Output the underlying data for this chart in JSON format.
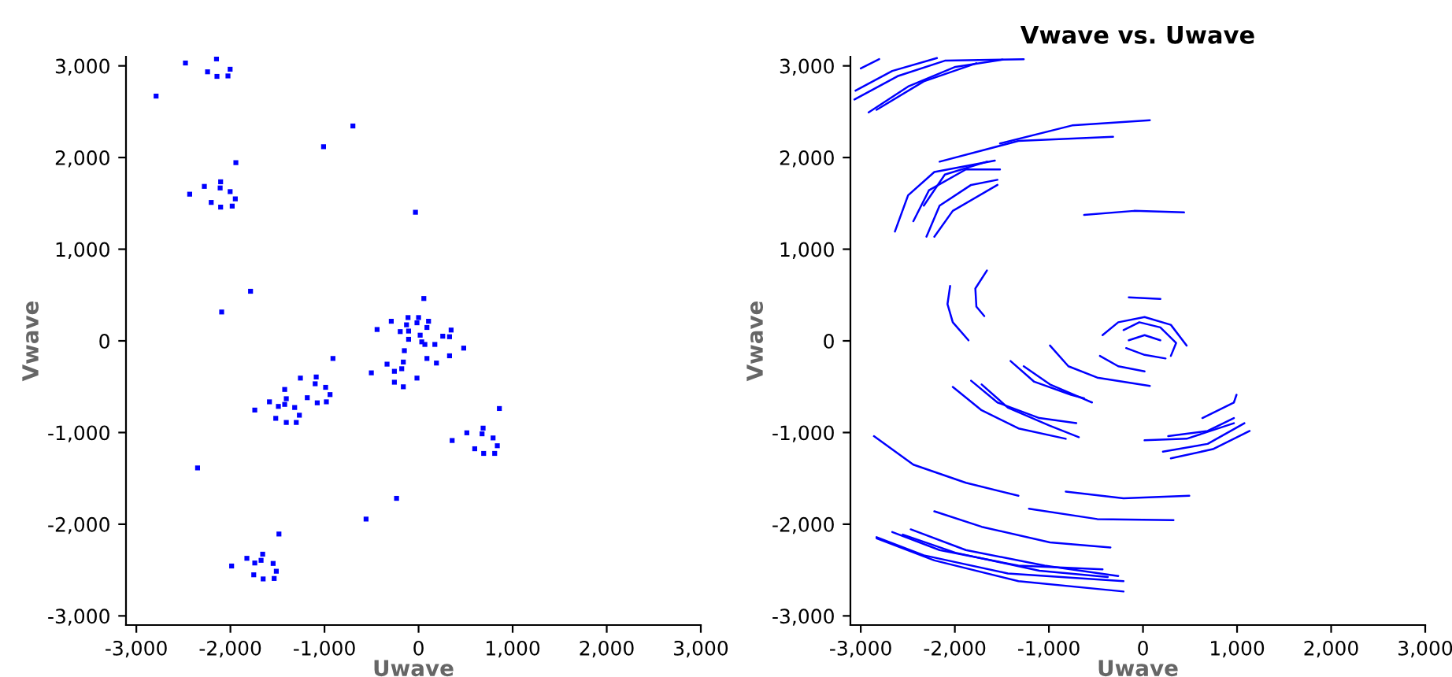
{
  "chart_data": [
    {
      "type": "scatter",
      "xlabel": "Uwave",
      "ylabel": "Vwave",
      "marker": "square",
      "grid": false,
      "xlim": [
        -3110,
        3000
      ],
      "ylim": [
        -3100,
        3100
      ],
      "xticks": [
        {
          "value": -3000,
          "label": "-3,000"
        },
        {
          "value": -2000,
          "label": "-2,000"
        },
        {
          "value": -1000,
          "label": "-1,000"
        },
        0,
        {
          "value": 1000,
          "label": "1,000"
        },
        {
          "value": 2000,
          "label": "2,000"
        },
        {
          "value": 3000,
          "label": "3,000"
        }
      ],
      "yticks": [
        {
          "value": -3000,
          "label": "-3,000"
        },
        {
          "value": -2000,
          "label": "-2,000"
        },
        {
          "value": -1000,
          "label": "-1,000"
        },
        0,
        {
          "value": 1000,
          "label": "1,000"
        },
        {
          "value": 2000,
          "label": "2,000"
        },
        {
          "value": 3000,
          "label": "3,000"
        }
      ],
      "series": [
        {
          "color": "#0000ff",
          "x": [
            -2478,
            -2148,
            -2243,
            -2003,
            -2143,
            -2026,
            -2790,
            -698,
            -1010,
            -1942,
            -2433,
            -2277,
            -2109,
            -2104,
            -2003,
            -1948,
            -2204,
            -2104,
            -1981,
            -33,
            -1786,
            -2093,
            56,
            -290,
            -112,
            0,
            106,
            -128,
            -17,
            89,
            -195,
            -106,
            17,
            -106,
            34,
            67,
            173,
            329,
            346,
            480,
            -441,
            -151,
            89,
            190,
            329,
            257,
            -179,
            -335,
            -502,
            -257,
            -17,
            -162,
            -257,
            -910,
            -162,
            -1256,
            -1088,
            -1099,
            -988,
            -1183,
            -1077,
            -980,
            -941,
            -1423,
            -1406,
            -1423,
            -1585,
            -1490,
            -1317,
            -1267,
            -1518,
            -1406,
            -1300,
            -1741,
            859,
            686,
            513,
            675,
            792,
            357,
            597,
            837,
            692,
            809,
            -2349,
            -234,
            -558,
            -1484,
            -1657,
            -1674,
            -1825,
            -1741,
            -1546,
            -1987,
            -1512,
            -1752,
            -1652,
            -1535
          ],
          "values": [
            3031,
            3076,
            2935,
            2963,
            2885,
            2890,
            2670,
            2344,
            2118,
            1944,
            1600,
            1685,
            1668,
            1735,
            1628,
            1549,
            1510,
            1459,
            1470,
            1403,
            541,
            315,
            462,
            214,
            254,
            254,
            214,
            175,
            197,
            146,
            101,
            107,
            62,
            17,
            -11,
            -39,
            -39,
            45,
            118,
            -79,
            124,
            -107,
            -192,
            -242,
            -163,
            51,
            -304,
            -254,
            -349,
            -332,
            -406,
            -501,
            -451,
            -192,
            -231,
            -406,
            -394,
            -468,
            -507,
            -620,
            -676,
            -665,
            -586,
            -530,
            -631,
            -693,
            -665,
            -715,
            -727,
            -811,
            -845,
            -890,
            -890,
            -755,
            -738,
            -952,
            -1003,
            -1014,
            -1059,
            -1087,
            -1177,
            -1144,
            -1228,
            -1228,
            -1386,
            -1718,
            -1944,
            -2107,
            -2327,
            -2394,
            -2372,
            -2423,
            -2428,
            -2456,
            -2513,
            -2552,
            -2597,
            -2592
          ]
        }
      ]
    },
    {
      "type": "line",
      "title": "Vwave vs. Uwave",
      "xlabel": "Uwave",
      "ylabel": "Vwave",
      "marker": "none",
      "line_style": "solid",
      "grid": false,
      "xlim": [
        -3110,
        3000
      ],
      "ylim": [
        -3100,
        3100
      ],
      "xticks": [
        {
          "value": -3000,
          "label": "-3,000"
        },
        {
          "value": -2000,
          "label": "-2,000"
        },
        {
          "value": -1000,
          "label": "-1,000"
        },
        0,
        {
          "value": 1000,
          "label": "1,000"
        },
        {
          "value": 2000,
          "label": "2,000"
        },
        {
          "value": 3000,
          "label": "3,000"
        }
      ],
      "yticks": [
        {
          "value": -3000,
          "label": "-3,000"
        },
        {
          "value": -2000,
          "label": "-2,000"
        },
        {
          "value": -1000,
          "label": "-1,000"
        },
        0,
        {
          "value": 1000,
          "label": "1,000"
        },
        {
          "value": 2000,
          "label": "2,000"
        },
        {
          "value": 3000,
          "label": "3,000"
        }
      ],
      "series": [
        {
          "color": "#0000ff",
          "x": [
            -3056,
            -2665,
            -2190
          ],
          "values": [
            2729,
            2944,
            3085
          ]
        },
        {
          "color": "#0000ff",
          "x": [
            -3067,
            -2609,
            -2106,
            -1268
          ],
          "values": [
            2633,
            2887,
            3056,
            3073
          ]
        },
        {
          "color": "#0000ff",
          "x": [
            -2916,
            -2497,
            -1994,
            -1492
          ],
          "values": [
            2492,
            2774,
            2989,
            3068
          ]
        },
        {
          "color": "#0000ff",
          "x": [
            -2832,
            -2330,
            -1771
          ],
          "values": [
            2520,
            2831,
            3028
          ]
        },
        {
          "color": "#0000ff",
          "x": [
            -3000,
            -2804
          ],
          "values": [
            2972,
            3073
          ]
        },
        {
          "color": "#0000ff",
          "x": [
            -2637,
            -2497,
            -2218,
            -1575
          ],
          "values": [
            1192,
            1588,
            1842,
            1966
          ]
        },
        {
          "color": "#0000ff",
          "x": [
            -2441,
            -2274,
            -1883,
            -1520
          ],
          "values": [
            1305,
            1644,
            1870,
            1870
          ]
        },
        {
          "color": "#0000ff",
          "x": [
            -2302,
            -2162,
            -1827,
            -1547
          ],
          "values": [
            1136,
            1475,
            1701,
            1757
          ]
        },
        {
          "color": "#0000ff",
          "x": [
            -2218,
            -2022,
            -1547
          ],
          "values": [
            1136,
            1418,
            1701
          ]
        },
        {
          "color": "#0000ff",
          "x": [
            -2330,
            -2106,
            -1659
          ],
          "values": [
            1475,
            1814,
            1955
          ]
        },
        {
          "color": "#0000ff",
          "x": [
            -1520,
            -754,
            73
          ],
          "values": [
            2153,
            2350,
            2407
          ]
        },
        {
          "color": "#0000ff",
          "x": [
            -2162,
            -1324,
            -318
          ],
          "values": [
            1955,
            2181,
            2226
          ]
        },
        {
          "color": "#0000ff",
          "x": [
            -626,
            -95,
            436
          ],
          "values": [
            1373,
            1418,
            1401
          ]
        },
        {
          "color": "#0000ff",
          "x": [
            -2050,
            -2078,
            -2022,
            -1855
          ],
          "values": [
            599,
            401,
            203,
            6
          ]
        },
        {
          "color": "#0000ff",
          "x": [
            -1659,
            -1782,
            -1771,
            -1687
          ],
          "values": [
            768,
            571,
            373,
            271
          ]
        },
        {
          "color": "#0000ff",
          "x": [
            -151,
            185
          ],
          "values": [
            475,
            458
          ]
        },
        {
          "color": "#0000ff",
          "x": [
            -430,
            -263,
            17,
            296,
            464
          ],
          "values": [
            62,
            203,
            260,
            175,
            -51
          ]
        },
        {
          "color": "#0000ff",
          "x": [
            -207,
            -39,
            184,
            352,
            296
          ],
          "values": [
            118,
            203,
            147,
            -23,
            -164
          ]
        },
        {
          "color": "#0000ff",
          "x": [
            -151,
            17,
            184
          ],
          "values": [
            6,
            62,
            6
          ]
        },
        {
          "color": "#0000ff",
          "x": [
            -179,
            17,
            240
          ],
          "values": [
            -79,
            -153,
            -192
          ]
        },
        {
          "color": "#0000ff",
          "x": [
            -458,
            -263,
            17
          ],
          "values": [
            -164,
            -277,
            -333
          ]
        },
        {
          "color": "#0000ff",
          "x": [
            -989,
            -793,
            -486,
            73
          ],
          "values": [
            -51,
            -277,
            -401,
            -492
          ]
        },
        {
          "color": "#0000ff",
          "x": [
            -1408,
            -1156,
            -765,
            -626
          ],
          "values": [
            -220,
            -446,
            -588,
            -627
          ]
        },
        {
          "color": "#0000ff",
          "x": [
            -1827,
            -1547,
            -1101,
            -709
          ],
          "values": [
            -435,
            -672,
            -842,
            -898
          ]
        },
        {
          "color": "#0000ff",
          "x": [
            -1715,
            -1436,
            -989,
            -682
          ],
          "values": [
            -475,
            -729,
            -927,
            -1051
          ]
        },
        {
          "color": "#0000ff",
          "x": [
            -2022,
            -1715,
            -1324,
            -821
          ],
          "values": [
            -503,
            -757,
            -955,
            -1068
          ]
        },
        {
          "color": "#0000ff",
          "x": [
            -1268,
            -989,
            -542
          ],
          "values": [
            -277,
            -475,
            -672
          ]
        },
        {
          "color": "#0000ff",
          "x": [
            17,
            464,
            966
          ],
          "values": [
            -1085,
            -1068,
            -898
          ]
        },
        {
          "color": "#0000ff",
          "x": [
            268,
            687,
            966
          ],
          "values": [
            -1040,
            -983,
            -842
          ]
        },
        {
          "color": "#0000ff",
          "x": [
            296,
            743,
            1134
          ],
          "values": [
            -1282,
            -1181,
            -983
          ]
        },
        {
          "color": "#0000ff",
          "x": [
            631,
            966,
            994
          ],
          "values": [
            -842,
            -672,
            -588
          ]
        },
        {
          "color": "#0000ff",
          "x": [
            212,
            687,
            1078
          ],
          "values": [
            -1209,
            -1124,
            -898
          ]
        },
        {
          "color": "#0000ff",
          "x": [
            -2860,
            -2441,
            -1883,
            -1324
          ],
          "values": [
            -1040,
            -1350,
            -1548,
            -1689
          ]
        },
        {
          "color": "#0000ff",
          "x": [
            -821,
            -207,
            492
          ],
          "values": [
            -1644,
            -1718,
            -1689
          ]
        },
        {
          "color": "#0000ff",
          "x": [
            -1212,
            -486,
            324
          ],
          "values": [
            -1831,
            -1944,
            -1955
          ]
        },
        {
          "color": "#0000ff",
          "x": [
            -2218,
            -1715,
            -989,
            -346
          ],
          "values": [
            -1859,
            -2028,
            -2198,
            -2254
          ]
        },
        {
          "color": "#0000ff",
          "x": [
            -2665,
            -2162,
            -1324,
            -430
          ],
          "values": [
            -2085,
            -2282,
            -2452,
            -2492
          ]
        },
        {
          "color": "#0000ff",
          "x": [
            -2832,
            -2330,
            -1436,
            -207
          ],
          "values": [
            -2141,
            -2339,
            -2537,
            -2621
          ]
        },
        {
          "color": "#0000ff",
          "x": [
            -2469,
            -1883,
            -1045,
            -263
          ],
          "values": [
            -2056,
            -2282,
            -2452,
            -2565
          ]
        },
        {
          "color": "#0000ff",
          "x": [
            -2832,
            -2218,
            -1324,
            -207
          ],
          "values": [
            -2153,
            -2395,
            -2621,
            -2734
          ]
        },
        {
          "color": "#0000ff",
          "x": [
            -2553,
            -1994,
            -1101,
            -374
          ],
          "values": [
            -2113,
            -2311,
            -2508,
            -2576
          ]
        }
      ]
    }
  ]
}
